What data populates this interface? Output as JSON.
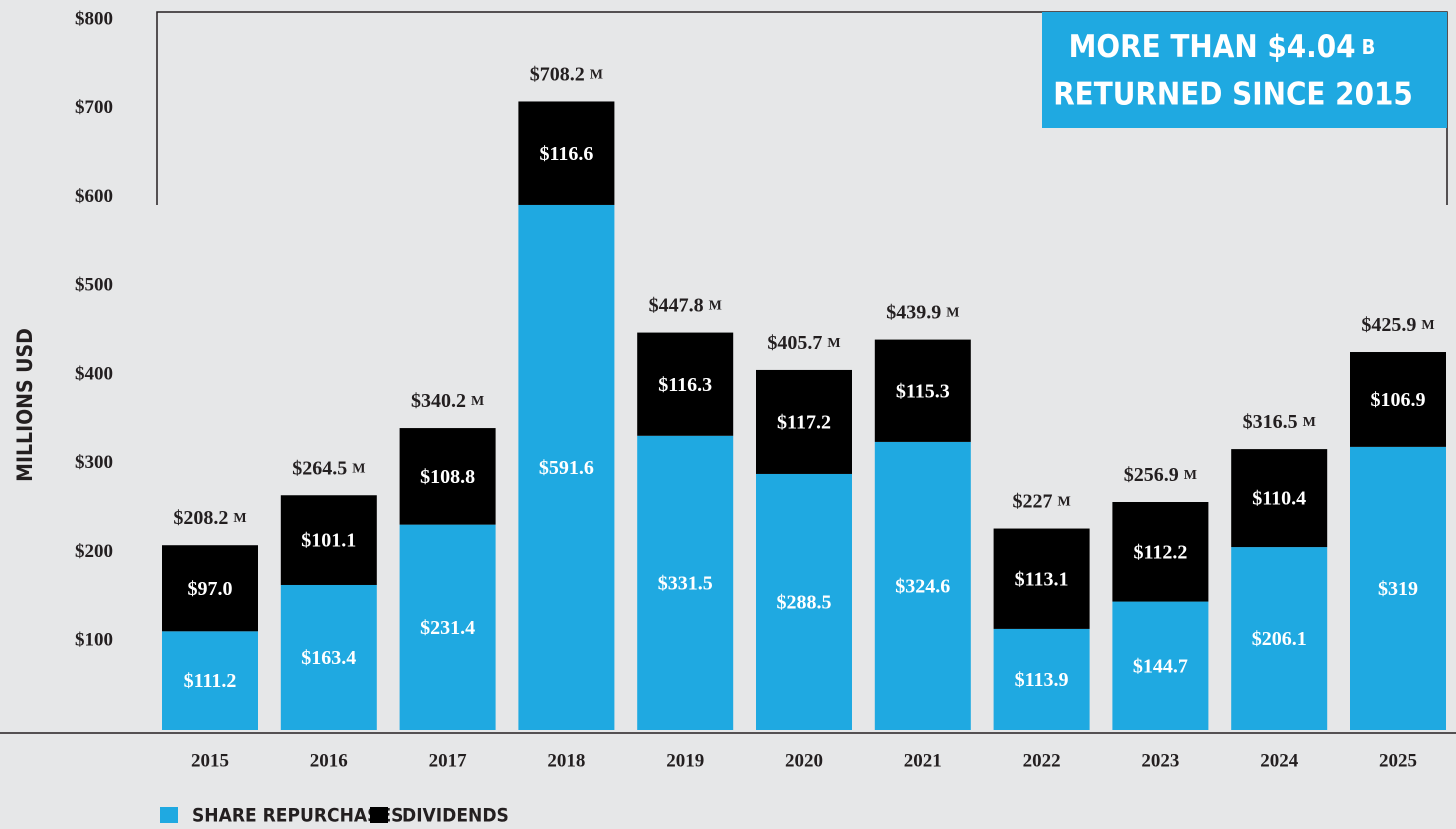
{
  "chart_data": {
    "type": "stacked_bar",
    "ylabel": "MILLIONS USD",
    "callout": {
      "line1": "MORE THAN $4.04",
      "unit": "B",
      "line2": "RETURNED SINCE 2015"
    },
    "categories": [
      "2015",
      "2016",
      "2017",
      "2018",
      "2019",
      "2020",
      "2021",
      "2022",
      "2023",
      "2024",
      "2025"
    ],
    "series": [
      {
        "name": "SHARE REPURCHASES",
        "color": "#1fa9e1",
        "values": [
          111.2,
          163.4,
          231.4,
          591.6,
          331.5,
          288.5,
          324.6,
          113.9,
          144.7,
          206.1,
          319
        ],
        "value_labels": [
          "$111.2",
          "$163.4",
          "$231.4",
          "$591.6",
          "$331.5",
          "$288.5",
          "$324.6",
          "$113.9",
          "$144.7",
          "$206.1",
          "$319"
        ]
      },
      {
        "name": "DIVIDENDS",
        "color": "#000000",
        "values": [
          97.0,
          101.1,
          108.8,
          116.6,
          116.3,
          117.2,
          115.3,
          113.1,
          112.2,
          110.4,
          106.9
        ],
        "value_labels": [
          "$97.0",
          "$101.1",
          "$108.8",
          "$116.6",
          "$116.3",
          "$117.2",
          "$115.3",
          "$113.1",
          "$112.2",
          "$110.4",
          "$106.9"
        ]
      }
    ],
    "totals": [
      208.2,
      264.5,
      340.2,
      708.2,
      447.8,
      405.7,
      439.9,
      227,
      256.9,
      316.5,
      425.9
    ],
    "total_labels": [
      "$208.2",
      "$264.5",
      "$340.2",
      "$708.2",
      "$447.8",
      "$405.7",
      "$439.9",
      "$227",
      "$256.9",
      "$316.5",
      "$425.9"
    ],
    "total_unit": "M",
    "ylim": [
      0,
      800
    ],
    "yticks": [
      {
        "value": 100,
        "label": "$100"
      },
      {
        "value": 200,
        "label": "$200"
      },
      {
        "value": 300,
        "label": "$300"
      },
      {
        "value": 400,
        "label": "$400"
      },
      {
        "value": 500,
        "label": "$500"
      },
      {
        "value": 600,
        "label": "$600"
      },
      {
        "value": 700,
        "label": "$700"
      },
      {
        "value": 800,
        "label": "$800"
      }
    ],
    "grid": false
  }
}
